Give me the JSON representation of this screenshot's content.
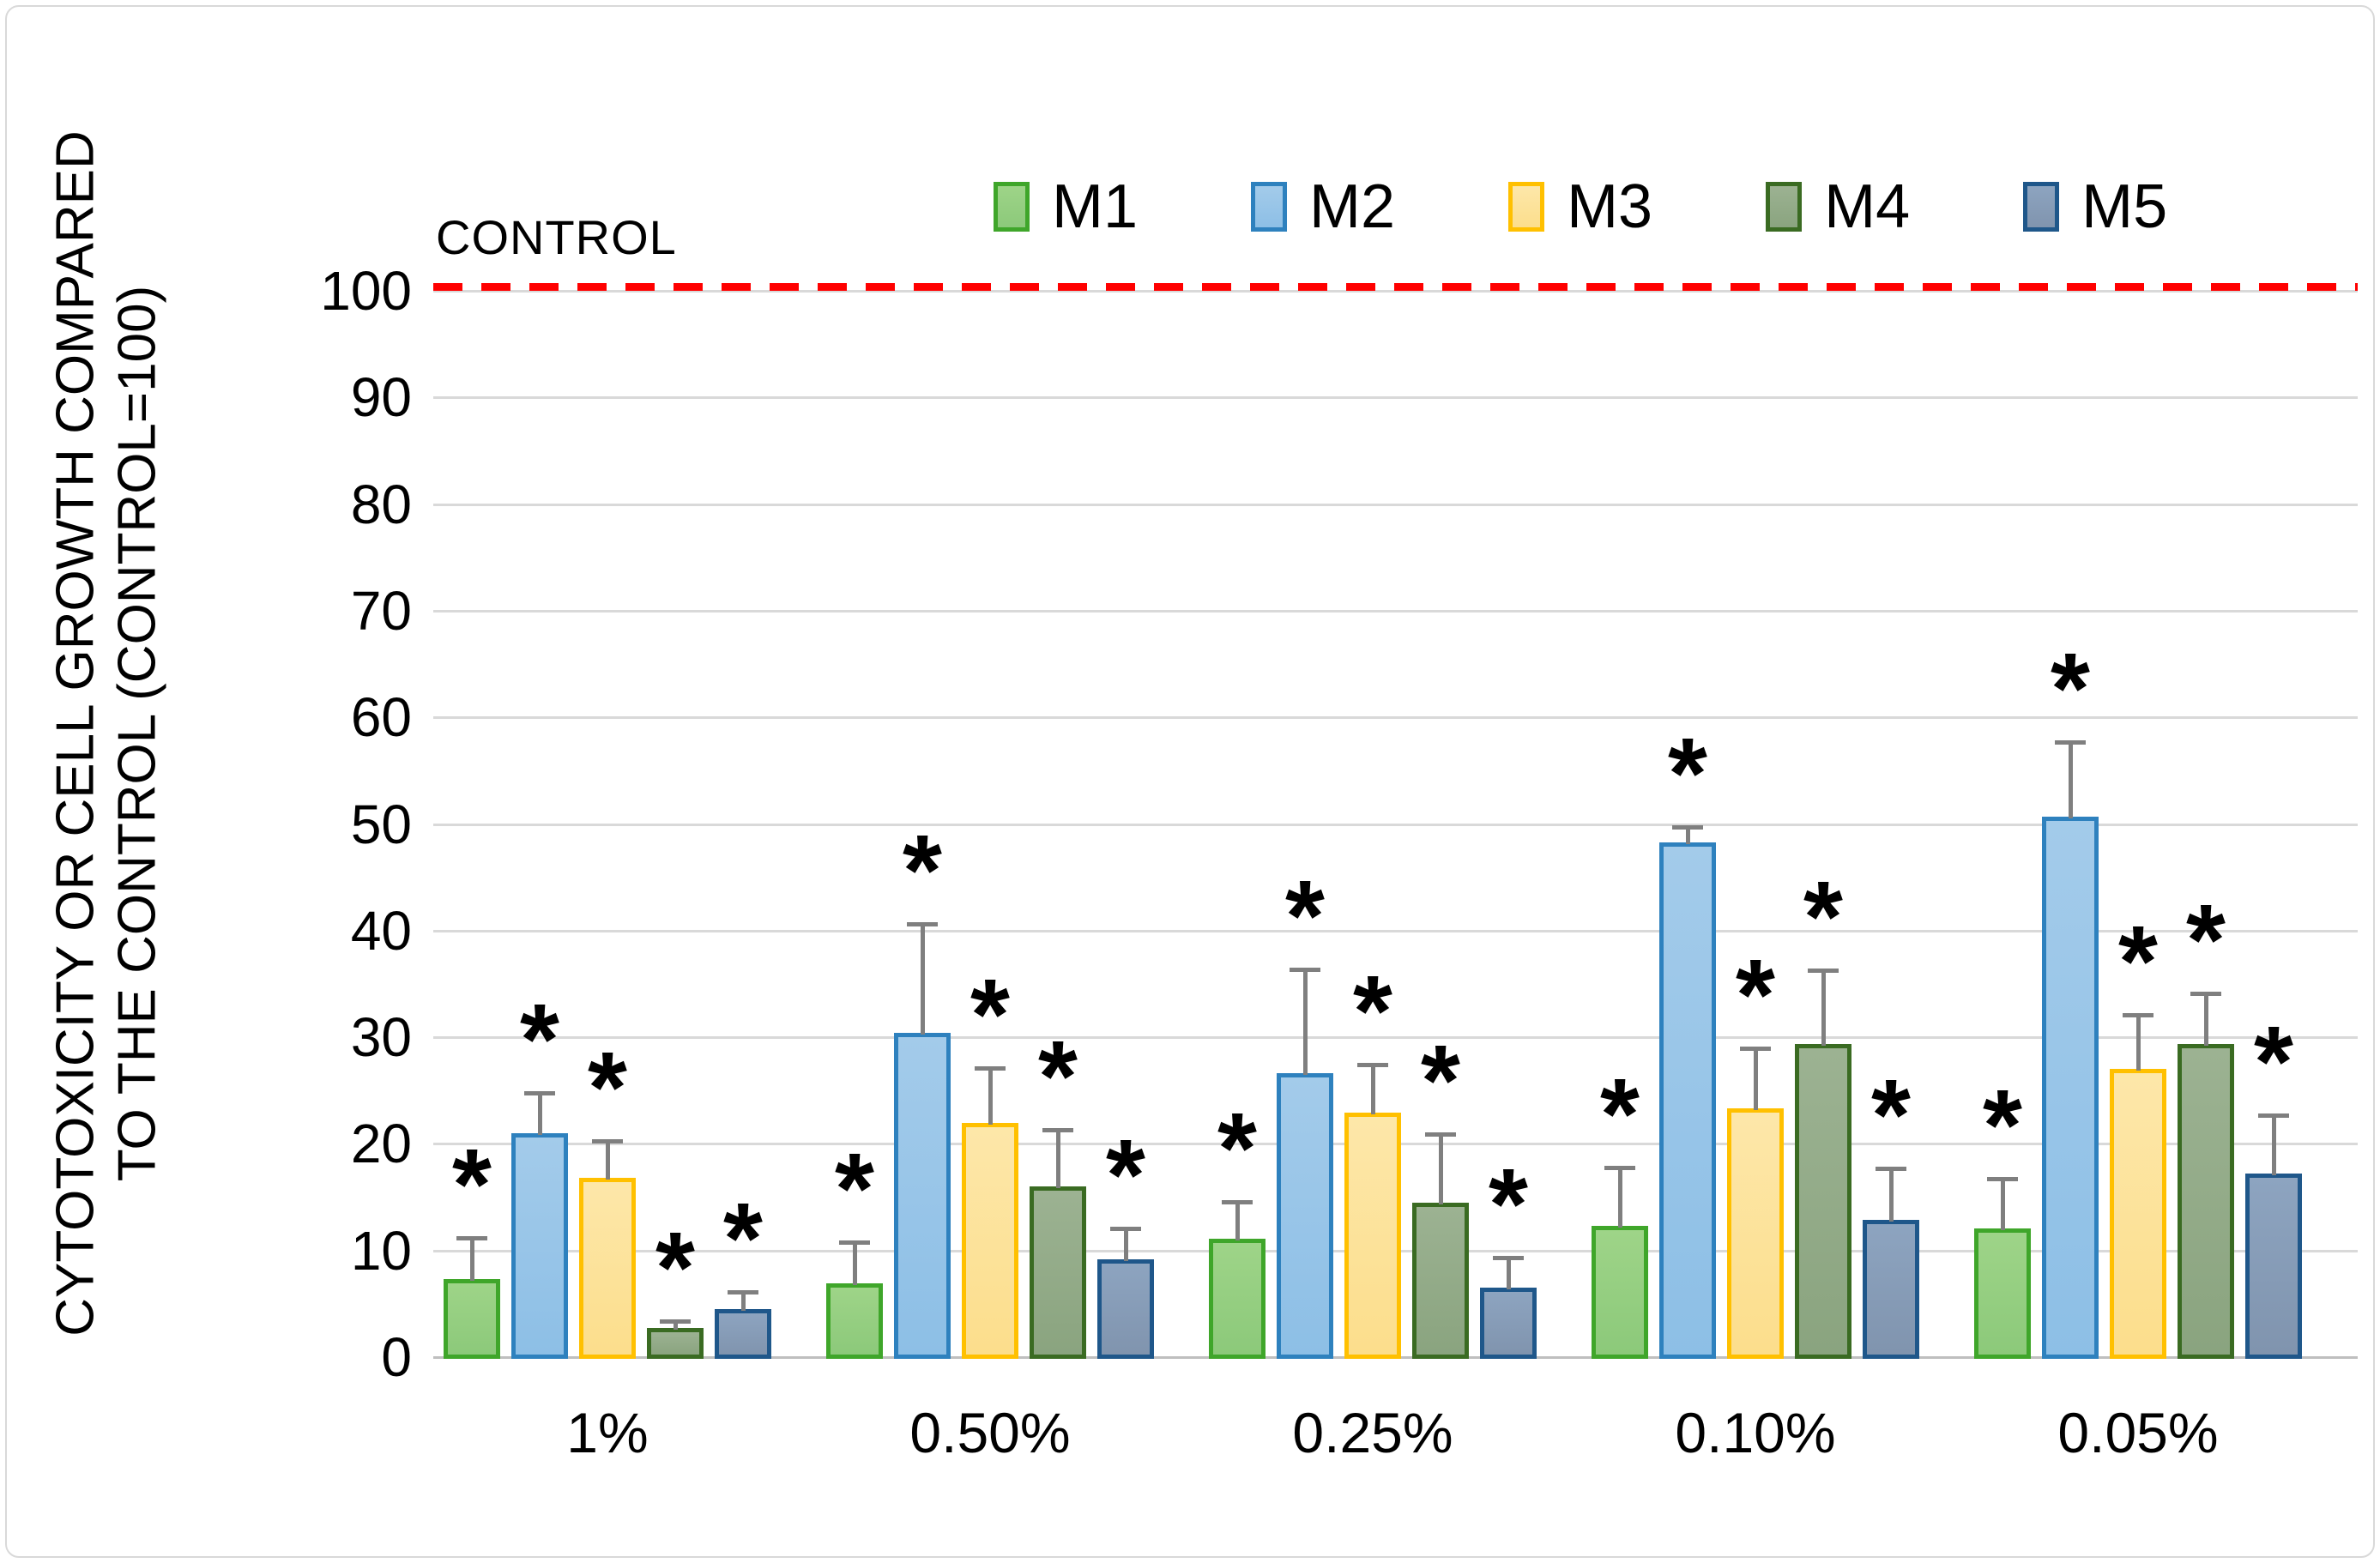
{
  "frame": {
    "background": "#FFFFFF",
    "border_color": "#D9D9D9"
  },
  "control": {
    "label": "CONTROL",
    "value": 100,
    "line_color": "#FF0000"
  },
  "y_axis": {
    "title_line1": "CYTOTOXICITY OR CELL GROWTH COMPARED",
    "title_line2": "TO THE CONTROL (CONTROL=100)",
    "ticks": [
      0,
      10,
      20,
      30,
      40,
      50,
      60,
      70,
      80,
      90,
      100
    ]
  },
  "legend": {
    "position": "top",
    "items": [
      "M1",
      "M2",
      "M3",
      "M4",
      "M5"
    ]
  },
  "chart_data": {
    "type": "bar",
    "title": "",
    "xlabel": "",
    "ylabel": "CYTOTOXICITY OR CELL GROWTH COMPARED TO THE CONTROL (CONTROL=100)",
    "categories": [
      "1%",
      "0.50%",
      "0.25%",
      "0.10%",
      "0.05%"
    ],
    "ylim": [
      0,
      100
    ],
    "grid": "horizontal",
    "legend_position": "top",
    "significance_marker": "*",
    "control_line": {
      "label": "CONTROL",
      "value": 100,
      "style": "dashed",
      "color": "#FF0000"
    },
    "error_bar_color": "#7F7F7F",
    "gridline_color": "#D9D9D9",
    "axis_line_color": "#BFBFBF",
    "series": [
      {
        "name": "M1",
        "fill_top": "#9ED488",
        "fill_bottom": "#8CC97A",
        "border": "#3FA62A",
        "values": [
          7.3,
          6.9,
          11.1,
          12.3,
          12.1
        ],
        "error_up": [
          3.9,
          3.9,
          3.5,
          5.5,
          4.6
        ],
        "significant": [
          true,
          true,
          true,
          true,
          true
        ]
      },
      {
        "name": "M2",
        "fill_top": "#A3CBEA",
        "fill_bottom": "#8DBFE6",
        "border": "#2E81BE",
        "values": [
          21.0,
          30.4,
          26.6,
          48.3,
          50.7
        ],
        "error_up": [
          3.8,
          10.2,
          9.8,
          1.4,
          7.0
        ],
        "significant": [
          true,
          true,
          true,
          true,
          true
        ]
      },
      {
        "name": "M3",
        "fill_top": "#FDE7A9",
        "fill_bottom": "#FCDE8C",
        "border": "#FFC000",
        "values": [
          16.8,
          22.0,
          22.9,
          23.3,
          27.0
        ],
        "error_up": [
          3.5,
          5.1,
          4.5,
          5.7,
          5.1
        ],
        "significant": [
          true,
          true,
          true,
          true,
          true
        ]
      },
      {
        "name": "M4",
        "fill_top": "#9CB292",
        "fill_bottom": "#8AA47F",
        "border": "#3A6B22",
        "values": [
          2.7,
          16.0,
          14.5,
          29.4,
          29.4
        ],
        "error_up": [
          0.7,
          5.3,
          6.4,
          6.9,
          4.7
        ],
        "significant": [
          true,
          true,
          true,
          true,
          true
        ]
      },
      {
        "name": "M5",
        "fill_top": "#8DA4C0",
        "fill_bottom": "#8094AE",
        "border": "#1F578A",
        "values": [
          4.5,
          9.2,
          6.5,
          12.9,
          17.2
        ],
        "error_up": [
          1.6,
          2.9,
          2.8,
          4.8,
          5.5
        ],
        "significant": [
          true,
          true,
          true,
          true,
          true
        ]
      }
    ]
  }
}
